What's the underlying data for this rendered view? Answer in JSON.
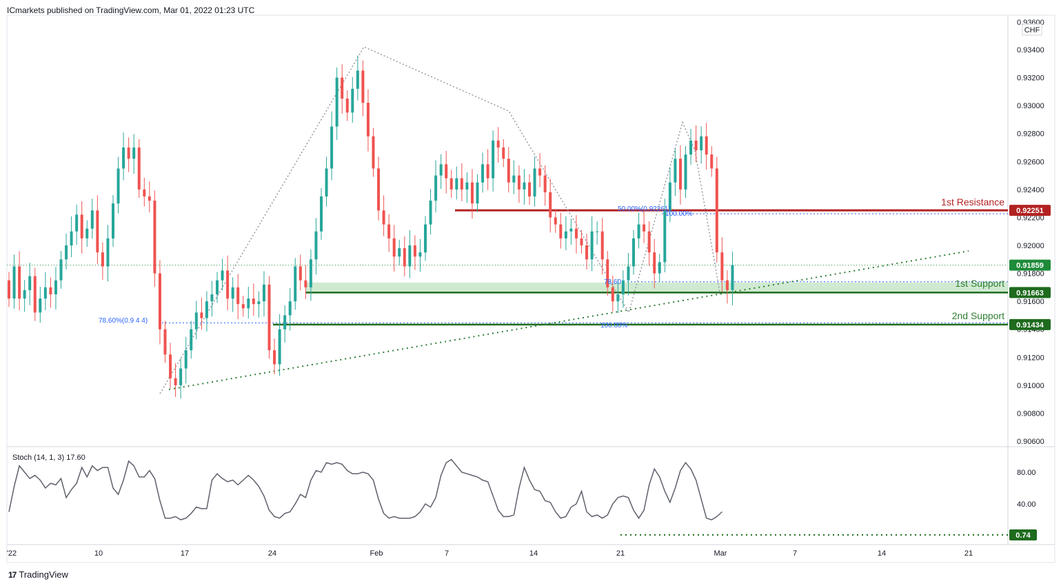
{
  "header": {
    "published": "ICmarkets published on TradingView.com, Mar 01, 2022 01:23 UTC"
  },
  "footer": {
    "brand": "TradingView",
    "logo_glyph": "17"
  },
  "colors": {
    "up": "#26a69a",
    "down": "#ef5350",
    "resistance": "#b22222",
    "support": "#1e6b1e",
    "fib": "#2962ff",
    "zone": "#c8e6c9",
    "stoch": "#5d606b"
  },
  "price_axis": {
    "currency": "CHF",
    "top_label": "0.93600",
    "labels": [
      "0.93400",
      "0.93200",
      "0.93000",
      "0.92800",
      "0.92600",
      "0.92400",
      "0.92200",
      "0.92000",
      "0.91800",
      "0.91600",
      "0.91400",
      "0.91200",
      "0.91000",
      "0.90800",
      "0.90600"
    ],
    "tags": [
      {
        "name": "resistance-tag",
        "text": "0.92251",
        "value": 0.92251,
        "color": "#b22222"
      },
      {
        "name": "last-price-tag",
        "text": "0.91859",
        "value": 0.91859,
        "color": "#1e8b3a"
      },
      {
        "name": "support1-tag",
        "text": "0.91663",
        "value": 0.91663,
        "color": "#1e6b1e"
      },
      {
        "name": "support2-tag",
        "text": "0.91434",
        "value": 0.91434,
        "color": "#1e6b1e"
      }
    ]
  },
  "stoch_axis": {
    "labels": [
      "80.00",
      "40.00"
    ],
    "tag": "0.74"
  },
  "time_axis": {
    "labels": [
      "'22",
      "10",
      "17",
      "24",
      "Feb",
      "7",
      "14",
      "21",
      "Mar",
      "7",
      "14",
      "21"
    ]
  },
  "annotations": {
    "resistance_label": "1st Resistance",
    "support1_label": "1st Support",
    "support2_label": "2nd Support",
    "fib_left": "78.60%(0.9 4 4)",
    "fib_50": "50.00%(0.92261)",
    "fib_100_upper": "100.00%",
    "fib_786_mid": "78.60",
    "fib_100_lower": "100.00%"
  },
  "stoch_label": "Stoch (14, 1, 3)  17.60",
  "chart_data": {
    "type": "candlestick",
    "instrument_quote": "CHF",
    "ylim": [
      0.9055,
      0.9362
    ],
    "levels": {
      "resistance_1": 0.92251,
      "support_1": 0.91663,
      "support_2": 0.91434,
      "last_price": 0.91859
    },
    "closes": [
      0.9162,
      0.9185,
      0.9162,
      0.9168,
      0.9178,
      0.9152,
      0.9162,
      0.917,
      0.9165,
      0.9175,
      0.919,
      0.92,
      0.921,
      0.9222,
      0.9205,
      0.9212,
      0.9225,
      0.9195,
      0.9185,
      0.9205,
      0.923,
      0.9255,
      0.927,
      0.9262,
      0.927,
      0.924,
      0.9235,
      0.9232,
      0.918,
      0.914,
      0.9122,
      0.9105,
      0.91,
      0.9112,
      0.9125,
      0.914,
      0.9152,
      0.9148,
      0.916,
      0.9165,
      0.9175,
      0.9182,
      0.9162,
      0.917,
      0.9158,
      0.9155,
      0.9162,
      0.9158,
      0.916,
      0.9172,
      0.9125,
      0.9115,
      0.914,
      0.915,
      0.916,
      0.9185,
      0.9175,
      0.917,
      0.919,
      0.921,
      0.9235,
      0.9255,
      0.9285,
      0.932,
      0.9305,
      0.9295,
      0.9312,
      0.9325,
      0.9302,
      0.9278,
      0.9255,
      0.9225,
      0.9215,
      0.9205,
      0.9192,
      0.9198,
      0.9185,
      0.92,
      0.9192,
      0.9195,
      0.9215,
      0.9232,
      0.925,
      0.9258,
      0.9248,
      0.924,
      0.9248,
      0.924,
      0.9245,
      0.923,
      0.9245,
      0.9258,
      0.9248,
      0.9275,
      0.927,
      0.9262,
      0.9245,
      0.925,
      0.924,
      0.9245,
      0.9235,
      0.9255,
      0.925,
      0.9238,
      0.922,
      0.9215,
      0.9205,
      0.921,
      0.9212,
      0.9205,
      0.92,
      0.919,
      0.921,
      0.921,
      0.919,
      0.917,
      0.916,
      0.9165,
      0.9175,
      0.9185,
      0.9205,
      0.9215,
      0.921,
      0.9195,
      0.918,
      0.9188,
      0.9225,
      0.9245,
      0.9262,
      0.924,
      0.9265,
      0.9275,
      0.9268,
      0.9278,
      0.9265,
      0.9255,
      0.9195,
      0.9175,
      0.9168,
      0.9186
    ]
  },
  "stoch_data": {
    "values": [
      30,
      62,
      88,
      80,
      72,
      76,
      70,
      60,
      66,
      64,
      72,
      48,
      58,
      66,
      86,
      74,
      88,
      82,
      86,
      86,
      60,
      52,
      70,
      94,
      88,
      74,
      74,
      82,
      72,
      44,
      22,
      22,
      24,
      20,
      22,
      28,
      36,
      34,
      34,
      70,
      78,
      72,
      68,
      70,
      64,
      70,
      76,
      70,
      62,
      50,
      32,
      24,
      22,
      28,
      30,
      40,
      52,
      48,
      70,
      82,
      80,
      92,
      90,
      92,
      90,
      82,
      78,
      78,
      80,
      78,
      70,
      46,
      28,
      22,
      24,
      22,
      22,
      22,
      24,
      30,
      40,
      36,
      48,
      76,
      92,
      96,
      88,
      80,
      78,
      76,
      74,
      70,
      68,
      50,
      32,
      24,
      24,
      26,
      60,
      86,
      70,
      58,
      56,
      44,
      42,
      30,
      22,
      24,
      36,
      40,
      56,
      30,
      24,
      26,
      22,
      26,
      40,
      48,
      50,
      48,
      32,
      22,
      32,
      64,
      84,
      74,
      56,
      42,
      60,
      82,
      92,
      84,
      70,
      46,
      22,
      20,
      24,
      30
    ]
  },
  "price_annotation_values": {
    "fib_left_price": 0.91446,
    "lower_trend_start": 0.9097,
    "lower_trend_end": 0.9196,
    "ascending_line_start": 0.9097
  }
}
